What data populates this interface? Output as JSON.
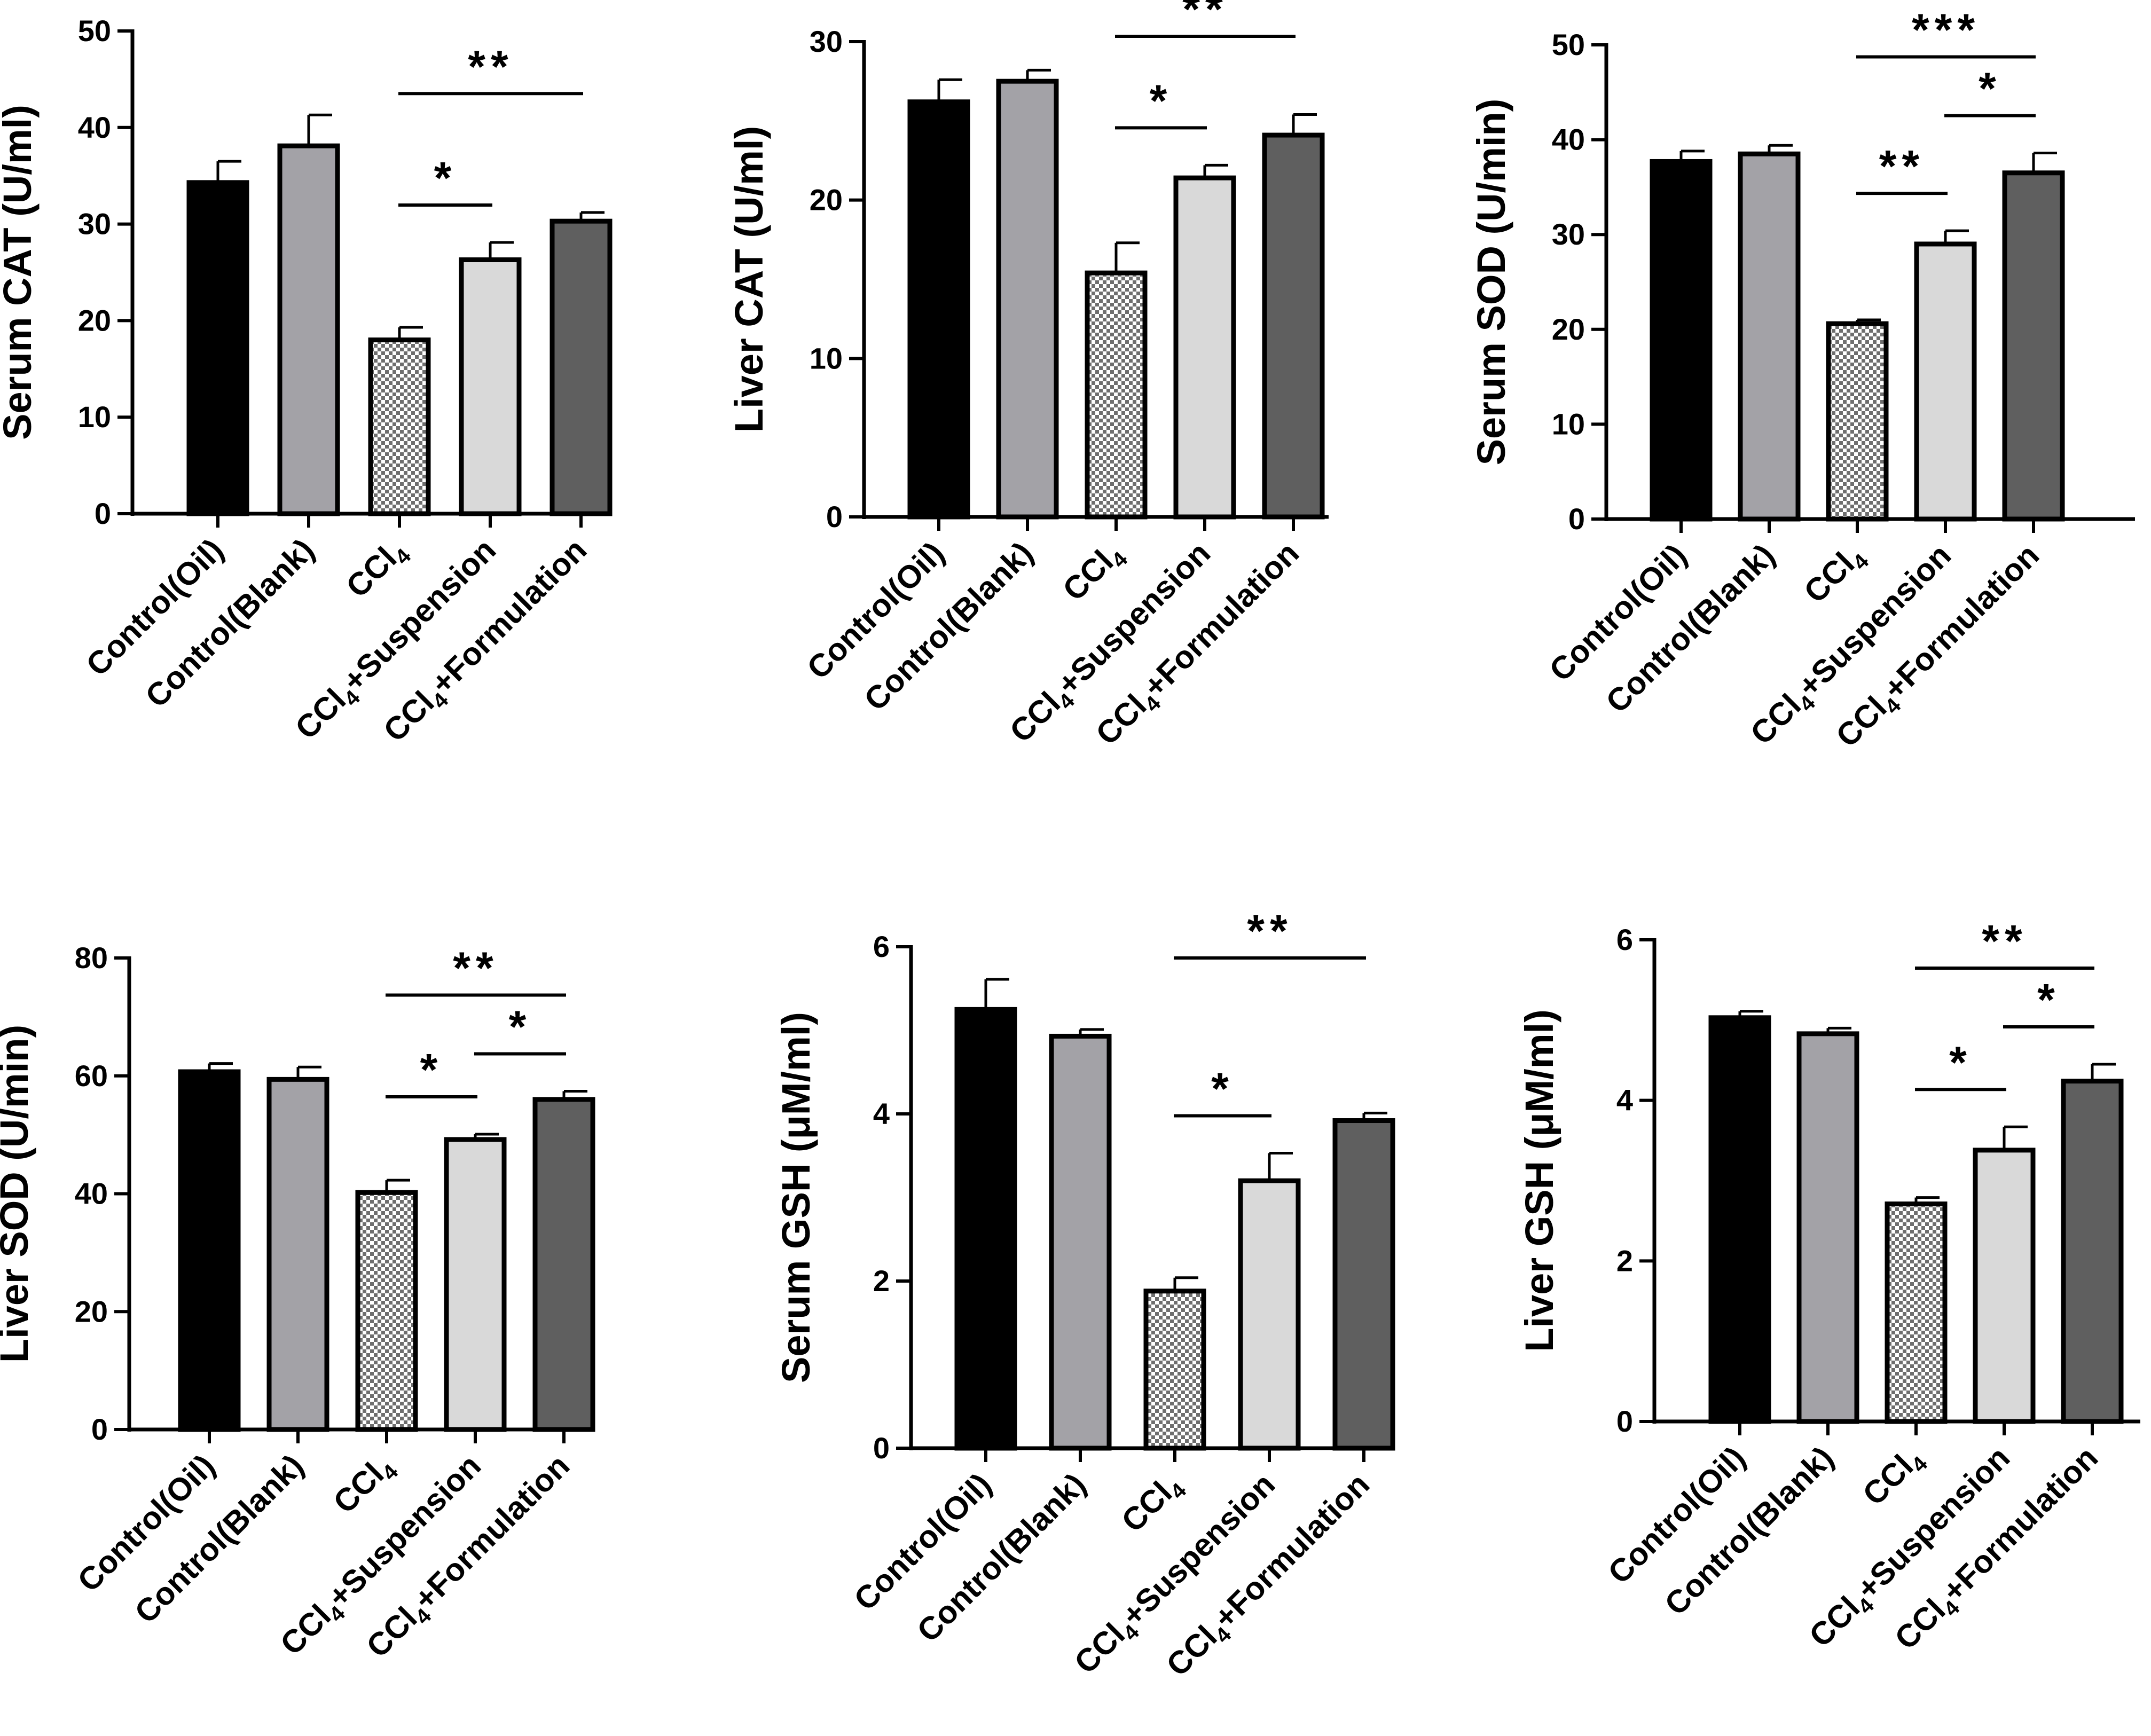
{
  "chart_data": [
    {
      "type": "bar",
      "title": "",
      "ylabel": "Serum CAT (U/ml)",
      "ylim": [
        0,
        50
      ],
      "yticks": [
        0,
        10,
        20,
        30,
        40,
        50
      ],
      "categories": [
        "Control(Oil)",
        "Control(Blank)",
        "CCl4",
        "CCl4+Suspension",
        "CCl4+Formulation"
      ],
      "values": [
        34.3,
        38.1,
        18.0,
        26.3,
        30.3
      ],
      "errors": [
        2.2,
        3.2,
        1.3,
        1.8,
        0.9
      ],
      "significance": [
        {
          "from": 2,
          "to": 3,
          "label": "*"
        },
        {
          "from": 2,
          "to": 4,
          "label": "**"
        }
      ]
    },
    {
      "type": "bar",
      "title": "",
      "ylabel": "Liver CAT (U/ml)",
      "ylim": [
        0,
        30
      ],
      "yticks": [
        0,
        10,
        20,
        30
      ],
      "categories": [
        "Control(Oil)",
        "Control(Blank)",
        "CCl4",
        "CCl4+Suspension",
        "CCl4+Formulation"
      ],
      "values": [
        26.2,
        27.5,
        15.4,
        21.4,
        24.1
      ],
      "errors": [
        1.4,
        0.7,
        1.9,
        0.8,
        1.3
      ],
      "significance": [
        {
          "from": 2,
          "to": 3,
          "label": "*"
        },
        {
          "from": 2,
          "to": 4,
          "label": "**"
        }
      ]
    },
    {
      "type": "bar",
      "title": "",
      "ylabel": "Serum SOD (U/min)",
      "ylim": [
        0,
        50
      ],
      "yticks": [
        0,
        10,
        20,
        30,
        40,
        50
      ],
      "categories": [
        "Control(Oil)",
        "Control(Blank)",
        "CCl4",
        "CCl4+Suspension",
        "CCl4+Formulation"
      ],
      "values": [
        37.7,
        38.5,
        20.6,
        29.0,
        36.5
      ],
      "errors": [
        1.1,
        0.9,
        0.4,
        1.4,
        2.1
      ],
      "significance": [
        {
          "from": 2,
          "to": 3,
          "label": "**"
        },
        {
          "from": 3,
          "to": 4,
          "label": "*"
        },
        {
          "from": 2,
          "to": 4,
          "label": "***"
        }
      ]
    },
    {
      "type": "bar",
      "title": "",
      "ylabel": "Liver SOD (U/min)",
      "ylim": [
        0,
        80
      ],
      "yticks": [
        0,
        20,
        40,
        60,
        80
      ],
      "categories": [
        "Control(Oil)",
        "Control(Blank)",
        "CCl4",
        "CCl4+Suspension",
        "CCl4+Formulation"
      ],
      "values": [
        60.7,
        59.4,
        40.2,
        49.2,
        56.0
      ],
      "errors": [
        1.4,
        2.1,
        2.1,
        0.9,
        1.4
      ],
      "significance": [
        {
          "from": 2,
          "to": 3,
          "label": "*"
        },
        {
          "from": 3,
          "to": 4,
          "label": "*"
        },
        {
          "from": 2,
          "to": 4,
          "label": "**"
        }
      ]
    },
    {
      "type": "bar",
      "title": "",
      "ylabel": "Serum GSH (μM/ml)",
      "ylim": [
        0,
        6
      ],
      "yticks": [
        0,
        2,
        4,
        6
      ],
      "categories": [
        "Control(Oil)",
        "Control(Blank)",
        "CCl4",
        "CCl4+Suspension",
        "CCl4+Formulation"
      ],
      "values": [
        5.25,
        4.93,
        1.88,
        3.2,
        3.92
      ],
      "errors": [
        0.36,
        0.08,
        0.16,
        0.33,
        0.09
      ],
      "significance": [
        {
          "from": 2,
          "to": 3,
          "label": "*"
        },
        {
          "from": 2,
          "to": 4,
          "label": "**"
        }
      ]
    },
    {
      "type": "bar",
      "title": "",
      "ylabel": "Liver GSH (μM/ml)",
      "ylim": [
        0,
        6
      ],
      "yticks": [
        0,
        2,
        4,
        6
      ],
      "categories": [
        "Control(Oil)",
        "Control(Blank)",
        "CCl4",
        "CCl4+Suspension",
        "CCl4+Formulation"
      ],
      "values": [
        5.03,
        4.83,
        2.71,
        3.38,
        4.24
      ],
      "errors": [
        0.08,
        0.07,
        0.08,
        0.29,
        0.21
      ],
      "significance": [
        {
          "from": 2,
          "to": 3,
          "label": "*"
        },
        {
          "from": 3,
          "to": 4,
          "label": "*"
        },
        {
          "from": 2,
          "to": 4,
          "label": "**"
        }
      ]
    }
  ],
  "colors": {
    "axis": "#000000",
    "bar_fills": [
      "#000000",
      "#a3a2a7",
      "pattern",
      "#d9d9d9",
      "#5f5f5f"
    ],
    "pattern_light": "#ffffff",
    "pattern_dark": "#6e6e6e"
  }
}
